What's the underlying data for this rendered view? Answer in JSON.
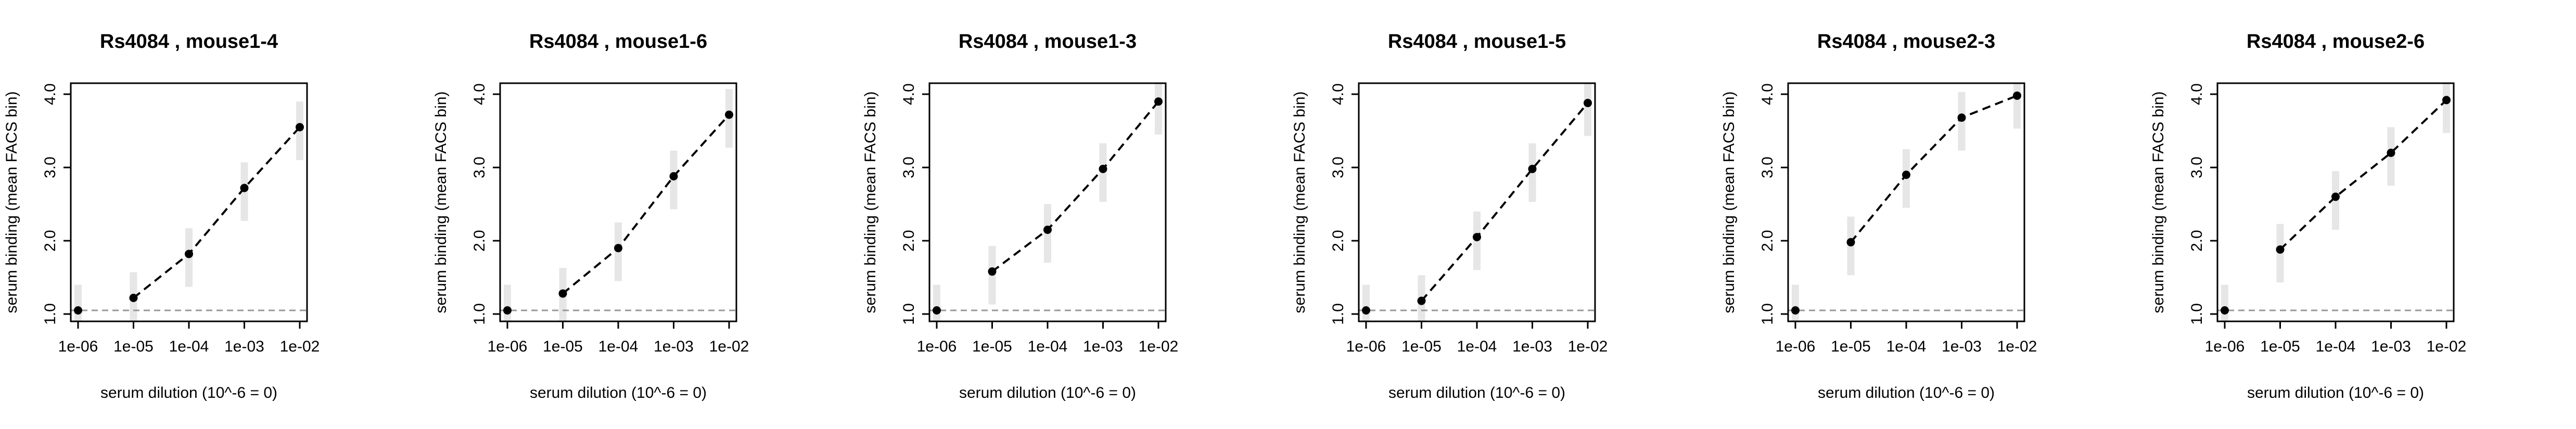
{
  "chart_data": [
    {
      "type": "line",
      "title": "Rs4084 , mouse1-4",
      "xlabel": "serum dilution (10^-6 = 0)",
      "ylabel": "serum binding (mean FACS bin)",
      "x_scale": "log",
      "x": [
        1e-06,
        1e-05,
        0.0001,
        0.001,
        0.01
      ],
      "x_tick_labels": [
        "1e-06",
        "1e-05",
        "1e-04",
        "1e-03",
        "1e-02"
      ],
      "y_tick_labels": [
        "1.0",
        "2.0",
        "3.0",
        "4.0"
      ],
      "ylim": [
        0.9,
        4.15
      ],
      "baseline": 1.05,
      "series": [
        {
          "values": [
            1.05,
            1.22,
            1.82,
            2.72,
            3.55
          ]
        }
      ]
    },
    {
      "type": "line",
      "title": "Rs4084 , mouse1-6",
      "xlabel": "serum dilution (10^-6 = 0)",
      "ylabel": "serum binding (mean FACS bin)",
      "x_scale": "log",
      "x": [
        1e-06,
        1e-05,
        0.0001,
        0.001,
        0.01
      ],
      "x_tick_labels": [
        "1e-06",
        "1e-05",
        "1e-04",
        "1e-03",
        "1e-02"
      ],
      "y_tick_labels": [
        "1.0",
        "2.0",
        "3.0",
        "4.0"
      ],
      "ylim": [
        0.9,
        4.15
      ],
      "baseline": 1.05,
      "series": [
        {
          "values": [
            1.05,
            1.28,
            1.9,
            2.88,
            3.72
          ]
        }
      ]
    },
    {
      "type": "line",
      "title": "Rs4084 , mouse1-3",
      "xlabel": "serum dilution (10^-6 = 0)",
      "ylabel": "serum binding (mean FACS bin)",
      "x_scale": "log",
      "x": [
        1e-06,
        1e-05,
        0.0001,
        0.001,
        0.01
      ],
      "x_tick_labels": [
        "1e-06",
        "1e-05",
        "1e-04",
        "1e-03",
        "1e-02"
      ],
      "y_tick_labels": [
        "1.0",
        "2.0",
        "3.0",
        "4.0"
      ],
      "ylim": [
        0.9,
        4.15
      ],
      "baseline": 1.05,
      "series": [
        {
          "values": [
            1.05,
            1.58,
            2.15,
            2.98,
            3.9
          ]
        }
      ]
    },
    {
      "type": "line",
      "title": "Rs4084 , mouse1-5",
      "xlabel": "serum dilution (10^-6 = 0)",
      "ylabel": "serum binding (mean FACS bin)",
      "x_scale": "log",
      "x": [
        1e-06,
        1e-05,
        0.0001,
        0.001,
        0.01
      ],
      "x_tick_labels": [
        "1e-06",
        "1e-05",
        "1e-04",
        "1e-03",
        "1e-02"
      ],
      "y_tick_labels": [
        "1.0",
        "2.0",
        "3.0",
        "4.0"
      ],
      "ylim": [
        0.9,
        4.15
      ],
      "baseline": 1.05,
      "series": [
        {
          "values": [
            1.05,
            1.18,
            2.05,
            2.98,
            3.88
          ]
        }
      ]
    },
    {
      "type": "line",
      "title": "Rs4084 , mouse2-3",
      "xlabel": "serum dilution (10^-6 = 0)",
      "ylabel": "serum binding (mean FACS bin)",
      "x_scale": "log",
      "x": [
        1e-06,
        1e-05,
        0.0001,
        0.001,
        0.01
      ],
      "x_tick_labels": [
        "1e-06",
        "1e-05",
        "1e-04",
        "1e-03",
        "1e-02"
      ],
      "y_tick_labels": [
        "1.0",
        "2.0",
        "3.0",
        "4.0"
      ],
      "ylim": [
        0.9,
        4.15
      ],
      "baseline": 1.05,
      "series": [
        {
          "values": [
            1.05,
            1.98,
            2.9,
            3.68,
            3.98
          ]
        }
      ]
    },
    {
      "type": "line",
      "title": "Rs4084 , mouse2-6",
      "xlabel": "serum dilution (10^-6 = 0)",
      "ylabel": "serum binding (mean FACS bin)",
      "x_scale": "log",
      "x": [
        1e-06,
        1e-05,
        0.0001,
        0.001,
        0.01
      ],
      "x_tick_labels": [
        "1e-06",
        "1e-05",
        "1e-04",
        "1e-03",
        "1e-02"
      ],
      "y_tick_labels": [
        "1.0",
        "2.0",
        "3.0",
        "4.0"
      ],
      "ylim": [
        0.9,
        4.15
      ],
      "baseline": 1.05,
      "series": [
        {
          "values": [
            1.05,
            1.88,
            2.6,
            3.2,
            3.92
          ]
        }
      ]
    }
  ],
  "style": {
    "line_color": "#000000",
    "point_color": "#000000",
    "baseline_color": "#999999",
    "spread_color": "#c8c8c8",
    "frame_color": "#000000"
  }
}
